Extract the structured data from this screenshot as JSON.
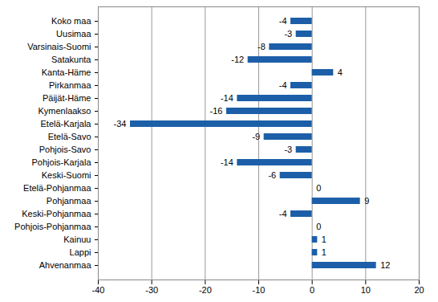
{
  "chart_data": {
    "type": "bar",
    "orientation": "horizontal",
    "categories": [
      "Koko maa",
      "Uusimaa",
      "Varsinais-Suomi",
      "Satakunta",
      "Kanta-Häme",
      "Pirkanmaa",
      "Päijät-Häme",
      "Kymenlaakso",
      "Etelä-Karjala",
      "Etelä-Savo",
      "Pohjois-Savo",
      "Pohjois-Karjala",
      "Keski-Suomi",
      "Etelä-Pohjanmaa",
      "Pohjanmaa",
      "Keski-Pohjanmaa",
      "Pohjois-Pohjanmaa",
      "Kainuu",
      "Lappi",
      "Ahvenanmaa"
    ],
    "values": [
      -4,
      -3,
      -8,
      -12,
      4,
      -4,
      -14,
      -16,
      -34,
      -9,
      -3,
      -14,
      -6,
      0,
      9,
      -4,
      0,
      1,
      1,
      12
    ],
    "color": "#1c5fa8",
    "xlim": [
      -40,
      20
    ],
    "xticks": [
      -40,
      -30,
      -20,
      -10,
      0,
      10,
      20
    ],
    "grid": true,
    "data_labels": true
  }
}
